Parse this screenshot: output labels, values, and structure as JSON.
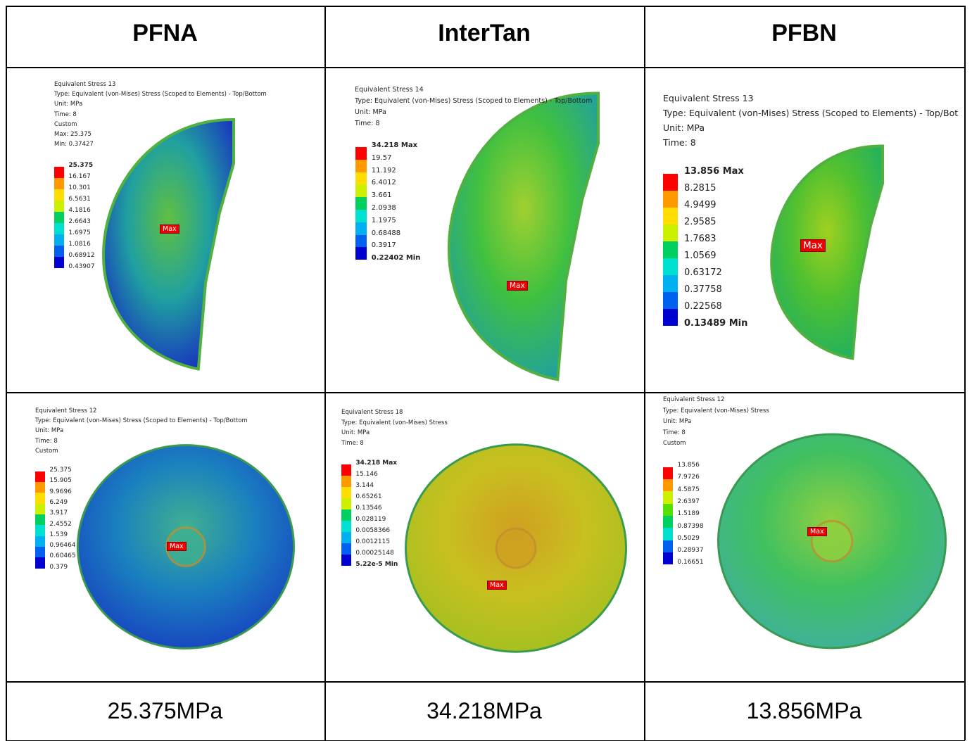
{
  "table": {
    "header": [
      "PFNA",
      "InterTan",
      "PFBN"
    ],
    "panels": [
      [
        {
          "lines": [
            "Equivalent Stress 13",
            "Type: Equivalent (von-Mises) Stress (Scoped to Elements) - Top/Bottom",
            "Unit: MPa",
            "Time: 8",
            "Custom",
            "Max: 25.375",
            "Min: 0.37427"
          ],
          "legend": [
            "25.375",
            "16.167",
            "10.301",
            "6.5631",
            "4.1816",
            "2.6643",
            "1.6975",
            "1.0816",
            "0.68912",
            "0.43907"
          ],
          "tag": "Max"
        },
        {
          "lines": [
            "Equivalent Stress 14",
            "Type: Equivalent (von-Mises) Stress (Scoped to Elements) - Top/Bottom",
            "Unit: MPa",
            "Time: 8"
          ],
          "legend": [
            "34.218 Max",
            "19.57",
            "11.192",
            "6.4012",
            "3.661",
            "2.0938",
            "1.1975",
            "0.68488",
            "0.3917",
            "0.22402 Min"
          ],
          "tag": "Max"
        },
        {
          "lines": [
            "Equivalent Stress 13",
            "Type: Equivalent (von-Mises) Stress (Scoped to Elements) - Top/Bot",
            "Unit: MPa",
            "Time: 8"
          ],
          "legend": [
            "13.856 Max",
            "8.2815",
            "4.9499",
            "2.9585",
            "1.7683",
            "1.0569",
            "0.63172",
            "0.37758",
            "0.22568",
            "0.13489 Min"
          ],
          "tag": "Max"
        }
      ],
      [
        {
          "lines": [
            "Equivalent Stress 12",
            "Type: Equivalent (von-Mises) Stress (Scoped to Elements) - Top/Bottom",
            "Unit: MPa",
            "Time: 8",
            "Custom"
          ],
          "legend": [
            "25.375",
            "15.905",
            "9.9696",
            "6.249",
            "3.917",
            "2.4552",
            "1.539",
            "0.96464",
            "0.60465",
            "0.379"
          ],
          "tag": "Max"
        },
        {
          "lines": [
            "Equivalent Stress 18",
            "Type: Equivalent (von-Mises) Stress",
            "Unit: MPa",
            "Time: 8"
          ],
          "legend": [
            "34.218 Max",
            "15.146",
            "3.144",
            "0.65261",
            "0.13546",
            "0.028119",
            "0.0058366",
            "0.0012115",
            "0.00025148",
            "5.22e-5 Min"
          ],
          "tag": "Max"
        },
        {
          "lines": [
            "Equivalent Stress 12",
            "Type: Equivalent (von-Mises) Stress",
            "Unit: MPa",
            "Time: 8",
            "Custom"
          ],
          "legend": [
            "13.856",
            "7.9726",
            "4.5875",
            "2.6397",
            "1.5189",
            "0.87398",
            "0.5029",
            "0.28937",
            "0.16651"
          ],
          "tag": "Max"
        }
      ]
    ],
    "footer": [
      "25.375MPa",
      "34.218MPa",
      "13.856MPa"
    ]
  }
}
